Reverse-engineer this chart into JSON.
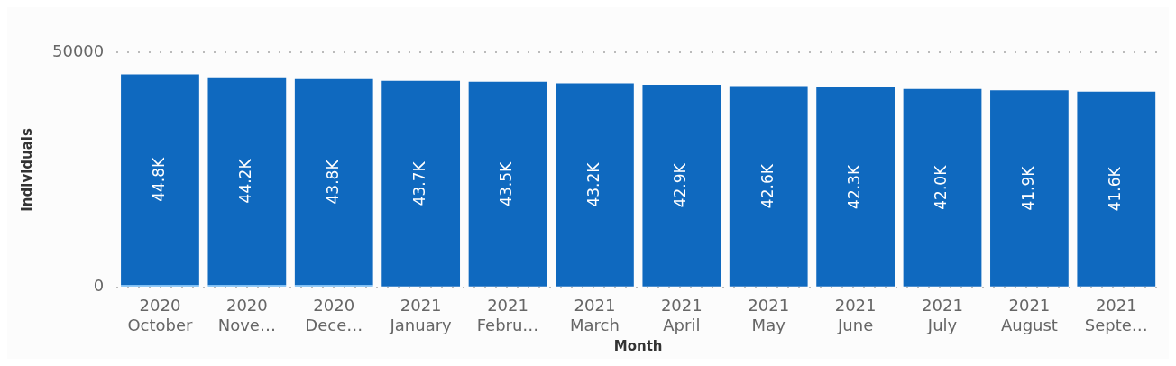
{
  "chart_data": {
    "type": "bar",
    "stacked": true,
    "xlabel": "Month",
    "ylabel": "Individuals",
    "categories": [
      "2020\nOctober",
      "2020\nNove…",
      "2020\nDece…",
      "2021\nJanuary",
      "2021\nFebru…",
      "2021\nMarch",
      "2021\nApril",
      "2021\nMay",
      "2021\nJune",
      "2021\nJuly",
      "2021\nAugust",
      "2021\nSepte…"
    ],
    "series": [
      {
        "color": "#6cb8f6",
        "values": [
          500,
          500,
          500,
          200,
          200,
          200,
          200,
          200,
          200,
          200,
          0,
          0
        ]
      },
      {
        "color": "#0f69bf",
        "values": [
          44800,
          44200,
          43800,
          43700,
          43500,
          43200,
          42900,
          42600,
          42300,
          42000,
          41900,
          41600
        ],
        "value_labels": [
          "44.8K",
          "44.2K",
          "43.8K",
          "43.7K",
          "43.5K",
          "43.2K",
          "42.9K",
          "42.6K",
          "42.3K",
          "42.0K",
          "41.9K",
          "41.6K"
        ]
      }
    ],
    "ylim": [
      0,
      50000
    ],
    "yticks": [
      0,
      50000
    ],
    "grid": "y",
    "legend": false
  }
}
